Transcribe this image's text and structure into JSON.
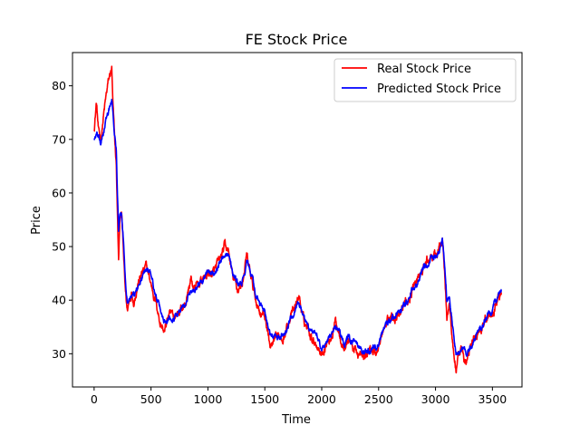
{
  "chart_data": {
    "type": "line",
    "title": "FE Stock Price",
    "xlabel": "Time",
    "ylabel": "Price",
    "xlim": [
      -190,
      3760
    ],
    "ylim": [
      23.8,
      86.2
    ],
    "xticks": [
      0,
      500,
      1000,
      1500,
      2000,
      2500,
      3000,
      3500
    ],
    "yticks": [
      30,
      40,
      50,
      60,
      70,
      80
    ],
    "legend_position": "top-right",
    "grid": false,
    "series": [
      {
        "name": "Real Stock Price",
        "color": "#ff0000",
        "keypoints": [
          [
            0,
            72
          ],
          [
            20,
            77
          ],
          [
            40,
            71
          ],
          [
            60,
            70
          ],
          [
            80,
            74
          ],
          [
            100,
            77
          ],
          [
            120,
            80
          ],
          [
            140,
            82
          ],
          [
            155,
            83
          ],
          [
            165,
            76
          ],
          [
            180,
            70
          ],
          [
            195,
            65
          ],
          [
            205,
            56
          ],
          [
            215,
            47
          ],
          [
            225,
            54
          ],
          [
            240,
            57
          ],
          [
            255,
            50
          ],
          [
            270,
            43
          ],
          [
            290,
            38
          ],
          [
            310,
            40
          ],
          [
            330,
            42
          ],
          [
            350,
            40
          ],
          [
            380,
            43
          ],
          [
            420,
            45
          ],
          [
            460,
            46
          ],
          [
            500,
            43
          ],
          [
            540,
            40
          ],
          [
            580,
            36
          ],
          [
            620,
            34
          ],
          [
            650,
            37
          ],
          [
            700,
            37
          ],
          [
            750,
            38
          ],
          [
            800,
            39
          ],
          [
            850,
            44
          ],
          [
            880,
            42
          ],
          [
            920,
            43
          ],
          [
            960,
            44
          ],
          [
            1000,
            45
          ],
          [
            1050,
            45
          ],
          [
            1100,
            47
          ],
          [
            1150,
            50
          ],
          [
            1180,
            49
          ],
          [
            1220,
            44
          ],
          [
            1260,
            42
          ],
          [
            1300,
            43
          ],
          [
            1340,
            48
          ],
          [
            1380,
            44
          ],
          [
            1420,
            40
          ],
          [
            1460,
            38
          ],
          [
            1500,
            37
          ],
          [
            1520,
            35
          ],
          [
            1550,
            31
          ],
          [
            1590,
            32
          ],
          [
            1630,
            33
          ],
          [
            1680,
            34
          ],
          [
            1720,
            37
          ],
          [
            1760,
            38
          ],
          [
            1800,
            41
          ],
          [
            1840,
            36
          ],
          [
            1880,
            35
          ],
          [
            1920,
            33
          ],
          [
            1960,
            32
          ],
          [
            2000,
            30
          ],
          [
            2040,
            32
          ],
          [
            2080,
            33
          ],
          [
            2120,
            36
          ],
          [
            2160,
            34
          ],
          [
            2200,
            31
          ],
          [
            2240,
            33
          ],
          [
            2280,
            31
          ],
          [
            2320,
            30
          ],
          [
            2360,
            29
          ],
          [
            2400,
            30
          ],
          [
            2440,
            31
          ],
          [
            2480,
            30
          ],
          [
            2520,
            33
          ],
          [
            2560,
            35
          ],
          [
            2600,
            37
          ],
          [
            2640,
            37
          ],
          [
            2680,
            38
          ],
          [
            2720,
            39
          ],
          [
            2760,
            40
          ],
          [
            2800,
            42
          ],
          [
            2840,
            44
          ],
          [
            2880,
            45
          ],
          [
            2920,
            47
          ],
          [
            2960,
            48
          ],
          [
            3000,
            48
          ],
          [
            3030,
            49
          ],
          [
            3060,
            52
          ],
          [
            3080,
            45
          ],
          [
            3100,
            36
          ],
          [
            3120,
            40
          ],
          [
            3140,
            35
          ],
          [
            3160,
            30
          ],
          [
            3180,
            27
          ],
          [
            3200,
            29
          ],
          [
            3240,
            30
          ],
          [
            3270,
            28
          ],
          [
            3300,
            31
          ],
          [
            3350,
            33
          ],
          [
            3400,
            35
          ],
          [
            3450,
            37
          ],
          [
            3500,
            38
          ],
          [
            3550,
            41
          ],
          [
            3580,
            41
          ]
        ]
      },
      {
        "name": "Predicted Stock Price",
        "color": "#0000ff",
        "keypoints": [
          [
            0,
            70
          ],
          [
            20,
            71
          ],
          [
            40,
            70
          ],
          [
            60,
            69
          ],
          [
            80,
            71
          ],
          [
            100,
            73
          ],
          [
            120,
            75
          ],
          [
            140,
            76
          ],
          [
            155,
            77
          ],
          [
            165,
            75
          ],
          [
            180,
            71
          ],
          [
            195,
            68
          ],
          [
            205,
            60
          ],
          [
            215,
            53
          ],
          [
            225,
            55
          ],
          [
            240,
            56
          ],
          [
            255,
            52
          ],
          [
            270,
            46
          ],
          [
            290,
            40
          ],
          [
            310,
            40
          ],
          [
            330,
            41
          ],
          [
            350,
            41
          ],
          [
            380,
            42
          ],
          [
            420,
            44
          ],
          [
            460,
            46
          ],
          [
            500,
            45
          ],
          [
            540,
            41
          ],
          [
            580,
            38
          ],
          [
            620,
            36
          ],
          [
            650,
            37
          ],
          [
            700,
            37
          ],
          [
            750,
            38
          ],
          [
            800,
            39
          ],
          [
            850,
            42
          ],
          [
            880,
            42
          ],
          [
            920,
            43
          ],
          [
            960,
            44
          ],
          [
            1000,
            45
          ],
          [
            1050,
            45
          ],
          [
            1100,
            47
          ],
          [
            1150,
            49
          ],
          [
            1180,
            49
          ],
          [
            1220,
            45
          ],
          [
            1260,
            43
          ],
          [
            1300,
            43
          ],
          [
            1340,
            47
          ],
          [
            1380,
            45
          ],
          [
            1420,
            41
          ],
          [
            1460,
            39
          ],
          [
            1500,
            38
          ],
          [
            1520,
            36
          ],
          [
            1550,
            33
          ],
          [
            1590,
            33
          ],
          [
            1630,
            33
          ],
          [
            1680,
            34
          ],
          [
            1720,
            36
          ],
          [
            1760,
            38
          ],
          [
            1800,
            40
          ],
          [
            1840,
            37
          ],
          [
            1880,
            35
          ],
          [
            1920,
            34
          ],
          [
            1960,
            33
          ],
          [
            2000,
            31
          ],
          [
            2040,
            32
          ],
          [
            2080,
            33
          ],
          [
            2120,
            35
          ],
          [
            2160,
            34
          ],
          [
            2200,
            32
          ],
          [
            2240,
            33
          ],
          [
            2280,
            32
          ],
          [
            2320,
            31
          ],
          [
            2360,
            30
          ],
          [
            2400,
            30
          ],
          [
            2440,
            31
          ],
          [
            2480,
            31
          ],
          [
            2520,
            33
          ],
          [
            2560,
            35
          ],
          [
            2600,
            36
          ],
          [
            2640,
            37
          ],
          [
            2680,
            38
          ],
          [
            2720,
            39
          ],
          [
            2760,
            40
          ],
          [
            2800,
            42
          ],
          [
            2840,
            43
          ],
          [
            2880,
            45
          ],
          [
            2920,
            46
          ],
          [
            2960,
            48
          ],
          [
            3000,
            48
          ],
          [
            3030,
            49
          ],
          [
            3060,
            52
          ],
          [
            3080,
            47
          ],
          [
            3100,
            40
          ],
          [
            3120,
            41
          ],
          [
            3140,
            37
          ],
          [
            3160,
            33
          ],
          [
            3180,
            30
          ],
          [
            3200,
            30
          ],
          [
            3240,
            31
          ],
          [
            3270,
            30
          ],
          [
            3300,
            31
          ],
          [
            3350,
            33
          ],
          [
            3400,
            35
          ],
          [
            3450,
            37
          ],
          [
            3500,
            38
          ],
          [
            3550,
            41
          ],
          [
            3580,
            42
          ]
        ]
      }
    ]
  }
}
